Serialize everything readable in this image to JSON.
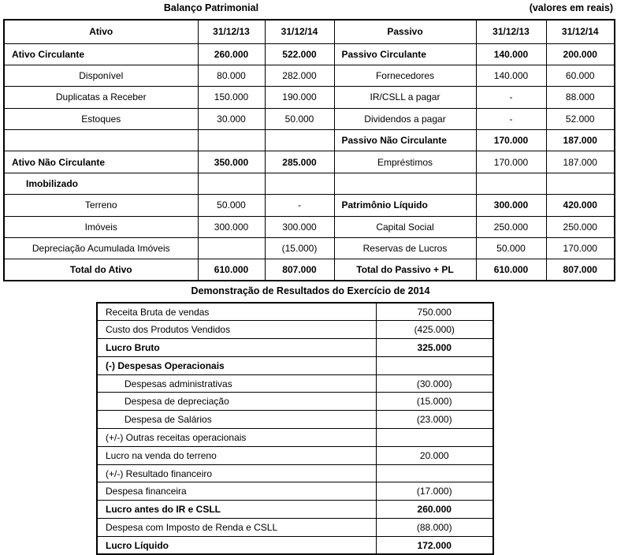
{
  "header": {
    "title": "Balanço Patrimonial",
    "note": "(valores em reais)"
  },
  "balance_sheet": {
    "columns": [
      "Ativo",
      "31/12/13",
      "31/12/14",
      "Passivo",
      "31/12/13",
      "31/12/14"
    ],
    "rows": [
      [
        {
          "t": "Ativo Circulante",
          "a": "left",
          "b": true
        },
        {
          "t": "260.000",
          "b": true
        },
        {
          "t": "522.000",
          "b": true
        },
        {
          "t": "Passivo Circulante",
          "a": "left",
          "b": true
        },
        {
          "t": "140.000",
          "b": true
        },
        {
          "t": "200.000",
          "b": true
        }
      ],
      [
        {
          "t": "Disponível"
        },
        {
          "t": "80.000"
        },
        {
          "t": "282.000"
        },
        {
          "t": "Fornecedores"
        },
        {
          "t": "140.000"
        },
        {
          "t": "60.000"
        }
      ],
      [
        {
          "t": "Duplicatas a Receber"
        },
        {
          "t": "150.000"
        },
        {
          "t": "190.000"
        },
        {
          "t": "IR/CSLL a pagar"
        },
        {
          "t": "-"
        },
        {
          "t": "88.000"
        }
      ],
      [
        {
          "t": "Estoques"
        },
        {
          "t": "30.000"
        },
        {
          "t": "50.000"
        },
        {
          "t": "Dividendos a pagar"
        },
        {
          "t": "-"
        },
        {
          "t": "52.000"
        }
      ],
      [
        {
          "t": ""
        },
        {
          "t": ""
        },
        {
          "t": ""
        },
        {
          "t": "Passivo Não Circulante",
          "a": "left",
          "b": true
        },
        {
          "t": "170.000",
          "b": true
        },
        {
          "t": "187.000",
          "b": true
        }
      ],
      [
        {
          "t": "Ativo Não Circulante",
          "a": "left",
          "b": true
        },
        {
          "t": "350.000",
          "b": true
        },
        {
          "t": "285.000",
          "b": true
        },
        {
          "t": "Empréstimos"
        },
        {
          "t": "170.000"
        },
        {
          "t": "187.000"
        }
      ],
      [
        {
          "t": "Imobilizado",
          "a": "left",
          "b": true,
          "ind": true
        },
        {
          "t": ""
        },
        {
          "t": ""
        },
        {
          "t": ""
        },
        {
          "t": ""
        },
        {
          "t": ""
        }
      ],
      [
        {
          "t": "Terreno"
        },
        {
          "t": "50.000"
        },
        {
          "t": "-"
        },
        {
          "t": "Patrimônio Líquido",
          "a": "left",
          "b": true
        },
        {
          "t": "300.000",
          "b": true
        },
        {
          "t": "420.000",
          "b": true
        }
      ],
      [
        {
          "t": "Imóveis"
        },
        {
          "t": "300.000"
        },
        {
          "t": "300.000"
        },
        {
          "t": "Capital Social"
        },
        {
          "t": "250.000"
        },
        {
          "t": "250.000"
        }
      ],
      [
        {
          "t": "Depreciação Acumulada Imóveis"
        },
        {
          "t": ""
        },
        {
          "t": "(15.000)"
        },
        {
          "t": "Reservas de Lucros"
        },
        {
          "t": "50.000"
        },
        {
          "t": "170.000"
        }
      ],
      [
        {
          "t": "Total do Ativo",
          "b": true
        },
        {
          "t": "610.000",
          "b": true
        },
        {
          "t": "807.000",
          "b": true
        },
        {
          "t": "Total do Passivo + PL",
          "b": true
        },
        {
          "t": "610.000",
          "b": true
        },
        {
          "t": "807.000",
          "b": true
        }
      ]
    ]
  },
  "income_statement": {
    "title": "Demonstração de Resultados do Exercício de 2014",
    "rows": [
      [
        {
          "t": "Receita Bruta de vendas",
          "a": "left"
        },
        {
          "t": "750.000"
        }
      ],
      [
        {
          "t": "Custo dos Produtos Vendidos",
          "a": "left"
        },
        {
          "t": "(425.000)"
        }
      ],
      [
        {
          "t": "Lucro Bruto",
          "a": "left",
          "b": true
        },
        {
          "t": "325.000",
          "b": true
        }
      ],
      [
        {
          "t": "(-) Despesas Operacionais",
          "a": "left",
          "b": true
        },
        {
          "t": ""
        }
      ],
      [
        {
          "t": "Despesas administrativas",
          "a": "left",
          "ind": true
        },
        {
          "t": "(30.000)"
        }
      ],
      [
        {
          "t": "Despesa de depreciação",
          "a": "left",
          "ind": true
        },
        {
          "t": "(15.000)"
        }
      ],
      [
        {
          "t": "Despesa de Salários",
          "a": "left",
          "ind": true
        },
        {
          "t": "(23.000)"
        }
      ],
      [
        {
          "t": "(+/-) Outras receitas operacionais",
          "a": "left"
        },
        {
          "t": ""
        }
      ],
      [
        {
          "t": "Lucro na venda do terreno",
          "a": "left"
        },
        {
          "t": "20.000"
        }
      ],
      [
        {
          "t": "(+/-) Resultado financeiro",
          "a": "left"
        },
        {
          "t": ""
        }
      ],
      [
        {
          "t": "Despesa financeira",
          "a": "left"
        },
        {
          "t": "(17.000)"
        }
      ],
      [
        {
          "t": "Lucro antes do IR e CSLL",
          "a": "left",
          "b": true
        },
        {
          "t": "260.000",
          "b": true
        }
      ],
      [
        {
          "t": "Despesa com Imposto de Renda e CSLL",
          "a": "left"
        },
        {
          "t": "(88.000)"
        }
      ],
      [
        {
          "t": "Lucro Líquido",
          "a": "left",
          "b": true
        },
        {
          "t": "172.000",
          "b": true
        }
      ]
    ]
  }
}
